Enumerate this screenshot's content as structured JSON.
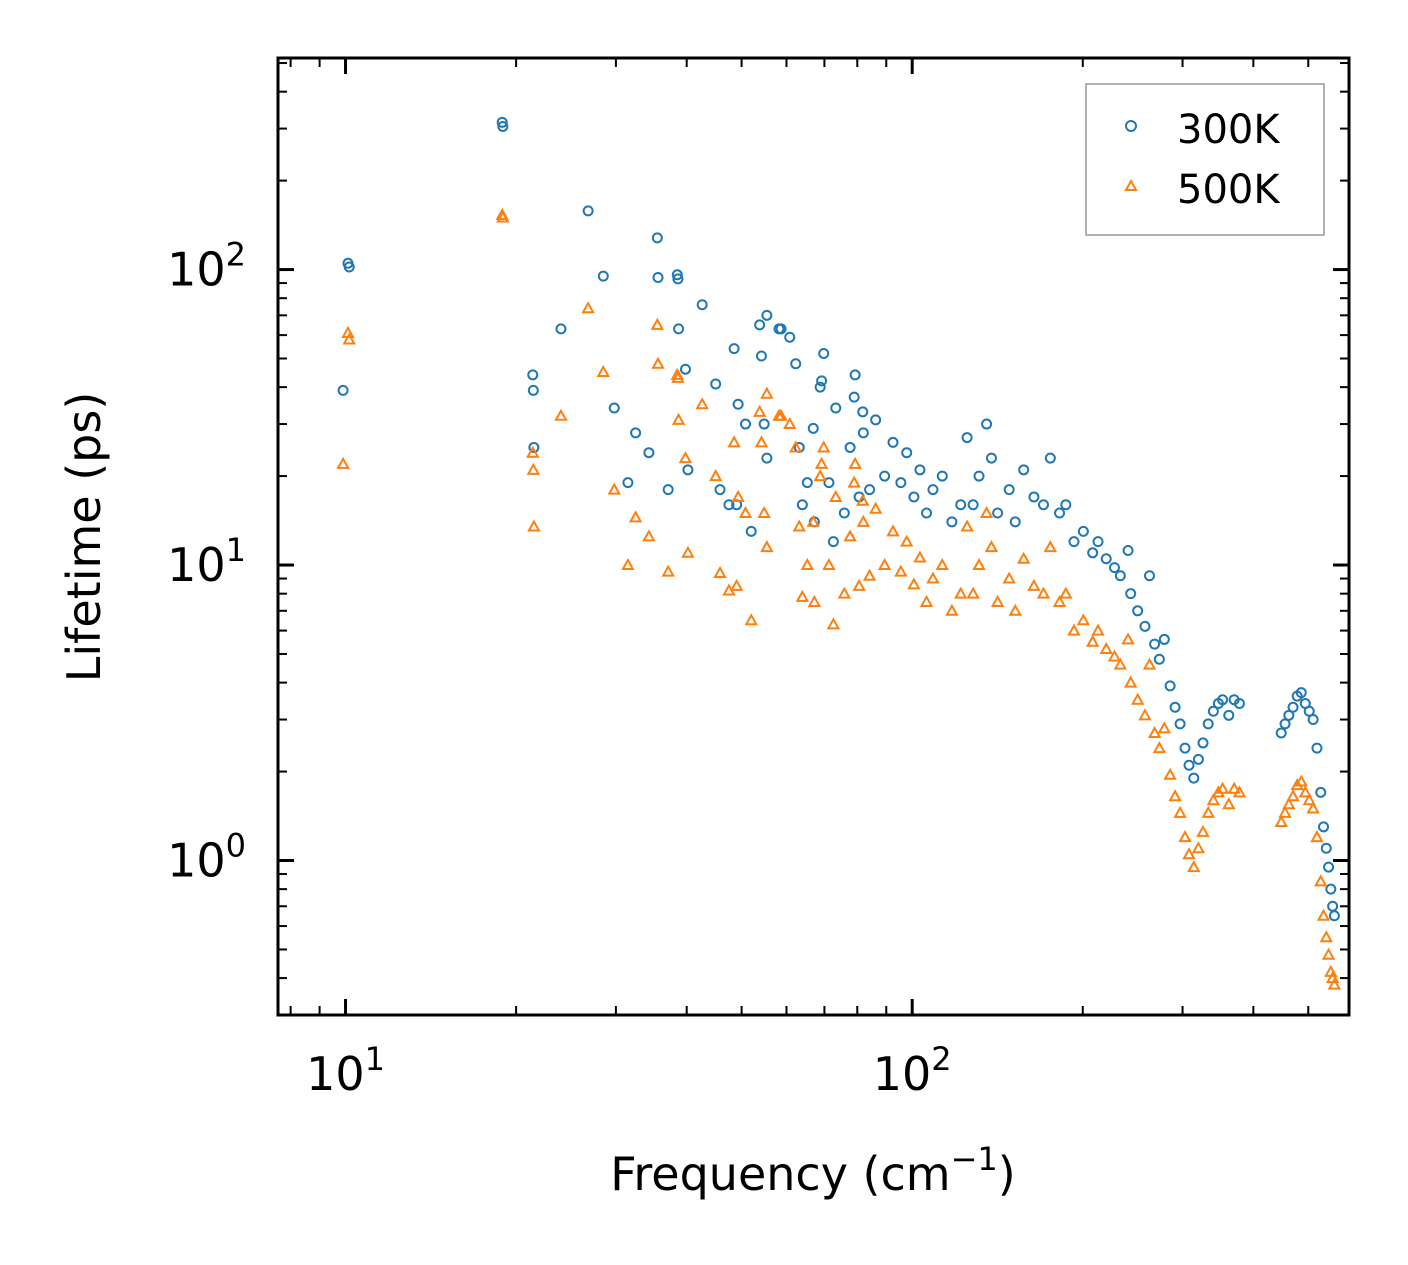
{
  "chart_data": {
    "type": "scatter",
    "title": "",
    "xlabel": "Frequency (cm",
    "xlabel_sup": "−1",
    "xlabel_close": ")",
    "ylabel": "Lifetime (ps)",
    "xscale": "log",
    "yscale": "log",
    "xlim": [
      7.6,
      590
    ],
    "ylim": [
      0.3,
      520
    ],
    "x_ticks": [
      {
        "value": 10,
        "base": "10",
        "exp": "1"
      },
      {
        "value": 100,
        "base": "10",
        "exp": "2"
      }
    ],
    "y_ticks": [
      {
        "value": 1,
        "base": "10",
        "exp": "0"
      },
      {
        "value": 10,
        "base": "10",
        "exp": "1"
      },
      {
        "value": 100,
        "base": "10",
        "exp": "2"
      }
    ],
    "legend_position": "top-right",
    "series": [
      {
        "name": "300K",
        "marker": "circle-open",
        "color": "#1f77b4",
        "points": [
          [
            9.9,
            39
          ],
          [
            10.1,
            105
          ],
          [
            10.15,
            102
          ],
          [
            18.9,
            315
          ],
          [
            18.95,
            305
          ],
          [
            21.4,
            44
          ],
          [
            21.45,
            39
          ],
          [
            21.5,
            25
          ],
          [
            24.0,
            63
          ],
          [
            26.8,
            158
          ],
          [
            28.5,
            95
          ],
          [
            29.8,
            34
          ],
          [
            31.5,
            19
          ],
          [
            32.5,
            28
          ],
          [
            34.3,
            24
          ],
          [
            35.5,
            128
          ],
          [
            35.6,
            94
          ],
          [
            37.1,
            18
          ],
          [
            38.5,
            96
          ],
          [
            38.6,
            93
          ],
          [
            38.7,
            63
          ],
          [
            39.8,
            46
          ],
          [
            40.2,
            21
          ],
          [
            42.6,
            76
          ],
          [
            45.0,
            41
          ],
          [
            45.8,
            18
          ],
          [
            47.5,
            16
          ],
          [
            48.5,
            54
          ],
          [
            49.0,
            16
          ],
          [
            49.3,
            35
          ],
          [
            50.8,
            30
          ],
          [
            52.0,
            13
          ],
          [
            53.8,
            65
          ],
          [
            54.2,
            51
          ],
          [
            54.8,
            30
          ],
          [
            55.4,
            70
          ],
          [
            55.4,
            23
          ],
          [
            58.2,
            63
          ],
          [
            58.7,
            63
          ],
          [
            60.8,
            59
          ],
          [
            62.3,
            48
          ],
          [
            63.2,
            25
          ],
          [
            64.0,
            16
          ],
          [
            65.3,
            19
          ],
          [
            66.9,
            29
          ],
          [
            67.2,
            14
          ],
          [
            68.8,
            40
          ],
          [
            69.2,
            42
          ],
          [
            69.8,
            52
          ],
          [
            71.3,
            19
          ],
          [
            72.6,
            12
          ],
          [
            73.3,
            34
          ],
          [
            75.9,
            15
          ],
          [
            77.7,
            25
          ],
          [
            79.0,
            37
          ],
          [
            79.3,
            44
          ],
          [
            80.6,
            17
          ],
          [
            81.8,
            33
          ],
          [
            82.0,
            28
          ],
          [
            84.1,
            18
          ],
          [
            86.2,
            31
          ],
          [
            89.4,
            20
          ],
          [
            92.5,
            26
          ],
          [
            95.5,
            19
          ],
          [
            97.8,
            24
          ],
          [
            100.7,
            17
          ],
          [
            103.2,
            21
          ],
          [
            106.0,
            15
          ],
          [
            108.8,
            18
          ],
          [
            113.0,
            20
          ],
          [
            117.5,
            14
          ],
          [
            121.8,
            16
          ],
          [
            125.0,
            27
          ],
          [
            128.1,
            16
          ],
          [
            131.2,
            20
          ],
          [
            135.3,
            30
          ],
          [
            138.0,
            23
          ],
          [
            141.5,
            15
          ],
          [
            148.3,
            18
          ],
          [
            152.0,
            14
          ],
          [
            157.3,
            21
          ],
          [
            164.0,
            17
          ],
          [
            170.5,
            16
          ],
          [
            175.3,
            23
          ],
          [
            182.0,
            15
          ],
          [
            186.7,
            16
          ],
          [
            193.0,
            12
          ],
          [
            200.5,
            13
          ],
          [
            208.2,
            11
          ],
          [
            212.8,
            12
          ],
          [
            220.0,
            10.5
          ],
          [
            227.5,
            9.8
          ],
          [
            233.0,
            9.2
          ],
          [
            240.4,
            11.2
          ],
          [
            243.0,
            8.0
          ],
          [
            250.0,
            7.0
          ],
          [
            257.5,
            6.2
          ],
          [
            262.3,
            9.2
          ],
          [
            267.8,
            5.4
          ],
          [
            273.0,
            4.8
          ],
          [
            278.6,
            5.6
          ],
          [
            285.2,
            3.9
          ],
          [
            291.0,
            3.3
          ],
          [
            297.0,
            2.9
          ],
          [
            303.0,
            2.4
          ],
          [
            308.0,
            2.1
          ],
          [
            314.0,
            1.9
          ],
          [
            320.0,
            2.2
          ],
          [
            326.0,
            2.5
          ],
          [
            333.0,
            2.9
          ],
          [
            340.0,
            3.2
          ],
          [
            347.0,
            3.4
          ],
          [
            353.0,
            3.5
          ],
          [
            362.0,
            3.1
          ],
          [
            370.0,
            3.5
          ],
          [
            378.0,
            3.4
          ],
          [
            448.0,
            2.7
          ],
          [
            455.0,
            2.9
          ],
          [
            462.0,
            3.1
          ],
          [
            470.0,
            3.3
          ],
          [
            478.0,
            3.6
          ],
          [
            486.0,
            3.7
          ],
          [
            494.0,
            3.4
          ],
          [
            502.0,
            3.2
          ],
          [
            510.0,
            3.0
          ],
          [
            518.0,
            2.4
          ],
          [
            526.0,
            1.7
          ],
          [
            532.0,
            1.3
          ],
          [
            538.0,
            1.1
          ],
          [
            543.0,
            0.95
          ],
          [
            548.0,
            0.8
          ],
          [
            552.0,
            0.7
          ],
          [
            556.0,
            0.65
          ]
        ]
      },
      {
        "name": "500K",
        "marker": "triangle-open",
        "color": "#ff7f0e",
        "points": [
          [
            9.9,
            22
          ],
          [
            10.1,
            61
          ],
          [
            10.15,
            58
          ],
          [
            18.9,
            153
          ],
          [
            18.95,
            150
          ],
          [
            21.4,
            24
          ],
          [
            21.45,
            21
          ],
          [
            21.5,
            13.5
          ],
          [
            24.0,
            32
          ],
          [
            26.8,
            74
          ],
          [
            28.5,
            45
          ],
          [
            29.8,
            18
          ],
          [
            31.5,
            10
          ],
          [
            32.5,
            14.5
          ],
          [
            34.3,
            12.5
          ],
          [
            35.5,
            65
          ],
          [
            35.6,
            48
          ],
          [
            37.1,
            9.5
          ],
          [
            38.5,
            44
          ],
          [
            38.6,
            43
          ],
          [
            38.7,
            31
          ],
          [
            39.8,
            23
          ],
          [
            40.2,
            11
          ],
          [
            42.6,
            35
          ],
          [
            45.0,
            20
          ],
          [
            45.8,
            9.4
          ],
          [
            47.5,
            8.2
          ],
          [
            48.5,
            26
          ],
          [
            49.0,
            8.5
          ],
          [
            49.3,
            17
          ],
          [
            50.8,
            15
          ],
          [
            52.0,
            6.5
          ],
          [
            53.8,
            33
          ],
          [
            54.2,
            26
          ],
          [
            54.8,
            15
          ],
          [
            55.4,
            38
          ],
          [
            55.4,
            11.5
          ],
          [
            58.2,
            32
          ],
          [
            58.7,
            32
          ],
          [
            60.8,
            30
          ],
          [
            62.3,
            25
          ],
          [
            63.2,
            13.5
          ],
          [
            64.0,
            7.8
          ],
          [
            65.3,
            10
          ],
          [
            66.9,
            14
          ],
          [
            67.2,
            7.5
          ],
          [
            68.8,
            20
          ],
          [
            69.2,
            22
          ],
          [
            69.8,
            25
          ],
          [
            71.3,
            10
          ],
          [
            72.6,
            6.3
          ],
          [
            73.3,
            17
          ],
          [
            75.9,
            8
          ],
          [
            77.7,
            12.5
          ],
          [
            79.0,
            19
          ],
          [
            79.3,
            22
          ],
          [
            80.6,
            8.5
          ],
          [
            81.8,
            16.5
          ],
          [
            82.0,
            14
          ],
          [
            84.1,
            9.2
          ],
          [
            86.2,
            15.5
          ],
          [
            89.4,
            10
          ],
          [
            92.5,
            13
          ],
          [
            95.5,
            9.5
          ],
          [
            97.8,
            12
          ],
          [
            100.7,
            8.6
          ],
          [
            103.2,
            10.6
          ],
          [
            106.0,
            7.5
          ],
          [
            108.8,
            9.0
          ],
          [
            113.0,
            10.0
          ],
          [
            117.5,
            7.0
          ],
          [
            121.8,
            8.0
          ],
          [
            125.0,
            13.5
          ],
          [
            128.1,
            8.0
          ],
          [
            131.2,
            10.0
          ],
          [
            135.3,
            15.0
          ],
          [
            138.0,
            11.5
          ],
          [
            141.5,
            7.5
          ],
          [
            148.3,
            9.0
          ],
          [
            152.0,
            7.0
          ],
          [
            157.3,
            10.5
          ],
          [
            164.0,
            8.5
          ],
          [
            170.5,
            8.0
          ],
          [
            175.3,
            11.5
          ],
          [
            182.0,
            7.5
          ],
          [
            186.7,
            8.0
          ],
          [
            193.0,
            6.0
          ],
          [
            200.5,
            6.5
          ],
          [
            208.2,
            5.5
          ],
          [
            212.8,
            6.0
          ],
          [
            220.0,
            5.2
          ],
          [
            227.5,
            4.9
          ],
          [
            233.0,
            4.6
          ],
          [
            240.4,
            5.6
          ],
          [
            243.0,
            4.0
          ],
          [
            250.0,
            3.5
          ],
          [
            257.5,
            3.1
          ],
          [
            262.3,
            4.6
          ],
          [
            267.8,
            2.7
          ],
          [
            273.0,
            2.4
          ],
          [
            278.6,
            2.8
          ],
          [
            285.2,
            1.95
          ],
          [
            291.0,
            1.65
          ],
          [
            297.0,
            1.45
          ],
          [
            303.0,
            1.2
          ],
          [
            308.0,
            1.05
          ],
          [
            314.0,
            0.95
          ],
          [
            320.0,
            1.1
          ],
          [
            326.0,
            1.25
          ],
          [
            333.0,
            1.45
          ],
          [
            340.0,
            1.6
          ],
          [
            347.0,
            1.7
          ],
          [
            353.0,
            1.75
          ],
          [
            362.0,
            1.55
          ],
          [
            370.0,
            1.75
          ],
          [
            378.0,
            1.7
          ],
          [
            448.0,
            1.35
          ],
          [
            455.0,
            1.45
          ],
          [
            462.0,
            1.55
          ],
          [
            470.0,
            1.65
          ],
          [
            478.0,
            1.8
          ],
          [
            486.0,
            1.85
          ],
          [
            494.0,
            1.7
          ],
          [
            502.0,
            1.6
          ],
          [
            510.0,
            1.5
          ],
          [
            518.0,
            1.2
          ],
          [
            526.0,
            0.85
          ],
          [
            532.0,
            0.65
          ],
          [
            538.0,
            0.55
          ],
          [
            543.0,
            0.48
          ],
          [
            548.0,
            0.42
          ],
          [
            552.0,
            0.4
          ],
          [
            556.0,
            0.38
          ]
        ]
      }
    ]
  }
}
